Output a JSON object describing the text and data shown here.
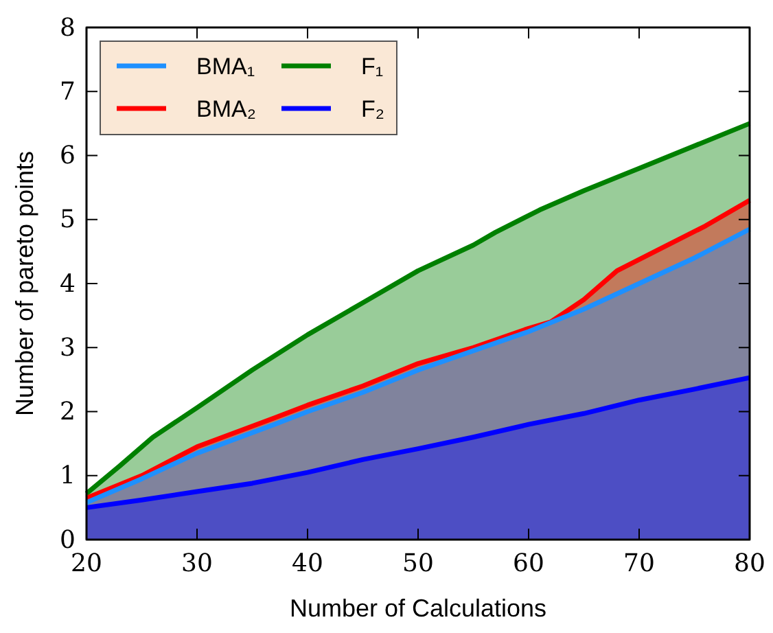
{
  "chart_data": {
    "type": "area",
    "xlabel": "Number of Calculations",
    "ylabel": "Number of pareto points",
    "xlim": [
      20,
      80
    ],
    "ylim": [
      0,
      8
    ],
    "xticks": [
      20,
      30,
      40,
      50,
      60,
      70,
      80
    ],
    "yticks": [
      0,
      1,
      2,
      3,
      4,
      5,
      6,
      7,
      8
    ],
    "grid": false,
    "legend": "top left",
    "line_style": "solid",
    "marker": "none",
    "series": [
      {
        "name": "BMA₁",
        "color": "#1e90ff",
        "x": [
          20,
          25,
          30,
          37,
          40,
          45,
          50,
          55,
          60,
          65,
          70,
          75,
          80
        ],
        "values": [
          0.58,
          0.95,
          1.35,
          1.8,
          2.0,
          2.3,
          2.65,
          2.95,
          3.25,
          3.6,
          4.0,
          4.4,
          4.85
        ]
      },
      {
        "name": "BMA₂",
        "color": "#ff0000",
        "x": [
          20,
          25,
          30,
          37,
          40,
          45,
          50,
          55,
          60,
          62,
          65,
          68,
          72,
          76,
          80
        ],
        "values": [
          0.65,
          1.0,
          1.45,
          1.9,
          2.1,
          2.4,
          2.75,
          3.0,
          3.3,
          3.4,
          3.75,
          4.2,
          4.55,
          4.9,
          5.3
        ]
      },
      {
        "name": "F₁",
        "color": "#008000",
        "x": [
          20,
          23,
          26,
          30,
          35,
          40,
          45,
          50,
          55,
          57,
          61,
          65,
          70,
          75,
          80
        ],
        "values": [
          0.72,
          1.15,
          1.6,
          2.06,
          2.65,
          3.2,
          3.7,
          4.2,
          4.6,
          4.8,
          5.15,
          5.45,
          5.8,
          6.15,
          6.5
        ]
      },
      {
        "name": "F₂",
        "color": "#0000ff",
        "x": [
          20,
          25,
          30,
          35,
          40,
          45,
          50,
          55,
          60,
          65,
          70,
          75,
          80
        ],
        "values": [
          0.5,
          0.62,
          0.75,
          0.88,
          1.05,
          1.25,
          1.42,
          1.6,
          1.8,
          1.97,
          2.18,
          2.35,
          2.53
        ]
      }
    ]
  }
}
